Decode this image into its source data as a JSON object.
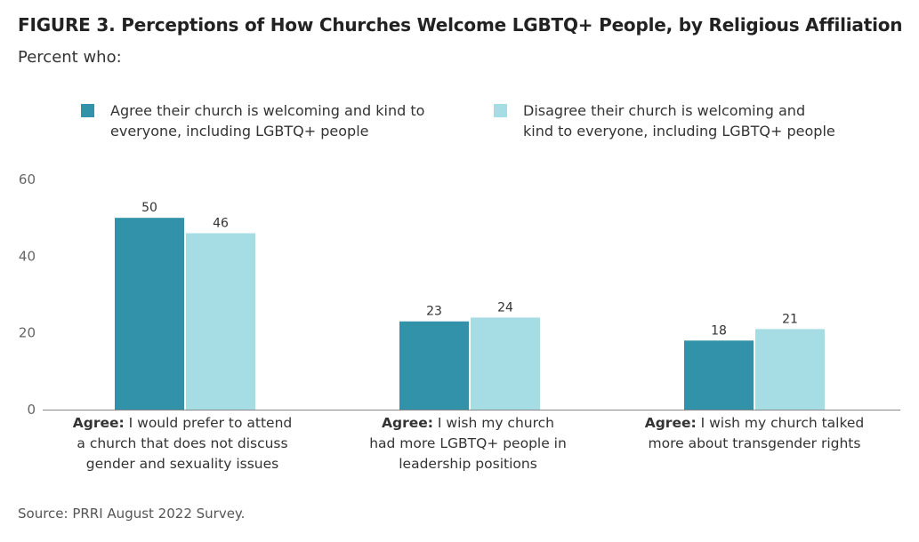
{
  "title": "FIGURE 3.  Perceptions of How Churches Welcome LGBTQ+ People, by Religious Affiliation",
  "subtitle": "Percent who:",
  "source": "Source: PRRI August 2022 Survey.",
  "colors": {
    "agree": "#3192a9",
    "disagree": "#a6dde4",
    "axis": "#888888"
  },
  "legend": {
    "agree_line1": "Agree their church is welcoming and kind to",
    "agree_line2": "everyone, including LGBTQ+ people",
    "disagree_line1": "Disagree their church is welcoming and",
    "disagree_line2": "kind to everyone, including LGBTQ+ people"
  },
  "chart_data": {
    "type": "bar",
    "title": "",
    "xlabel": "",
    "ylabel": "",
    "ylim": [
      0,
      60
    ],
    "yticks": [
      0,
      20,
      40,
      60
    ],
    "grid": false,
    "legend_position": "top",
    "categories": [
      {
        "prefix": "Agree:",
        "line1": " I would prefer to attend",
        "line2": "a church that does not discuss",
        "line3": "gender and sexuality issues"
      },
      {
        "prefix": "Agree:",
        "line1": " I wish my church",
        "line2": "had more LGBTQ+ people in",
        "line3": "leadership positions"
      },
      {
        "prefix": "Agree:",
        "line1": " I wish my church talked",
        "line2": "more about transgender rights",
        "line3": ""
      }
    ],
    "series": [
      {
        "name": "Agree their church is welcoming and kind to everyone, including LGBTQ+ people",
        "values": [
          50,
          23,
          18
        ]
      },
      {
        "name": "Disagree their church is welcoming and kind to everyone, including LGBTQ+ people",
        "values": [
          46,
          24,
          21
        ]
      }
    ]
  }
}
